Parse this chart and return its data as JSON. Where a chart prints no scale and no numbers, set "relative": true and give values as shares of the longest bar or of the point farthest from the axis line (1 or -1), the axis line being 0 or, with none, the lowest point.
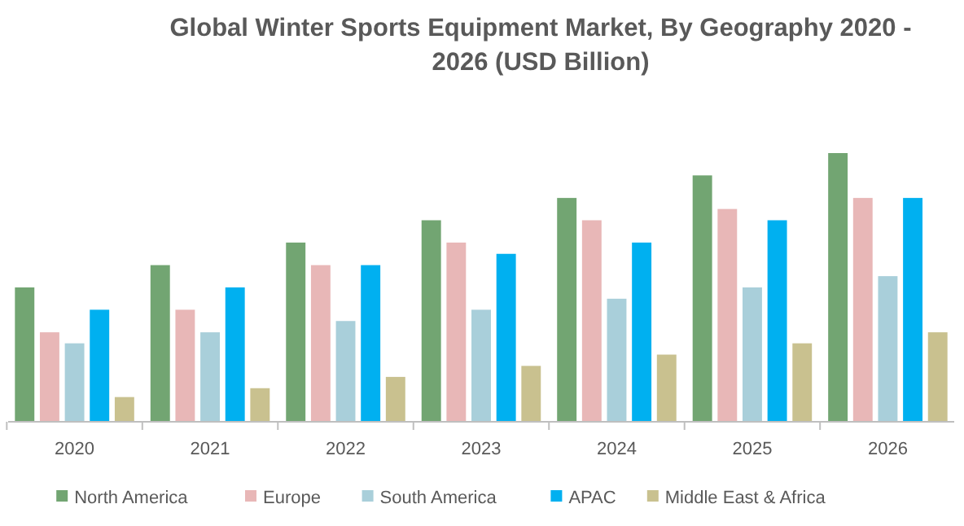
{
  "chart_data": {
    "type": "bar",
    "title": "Global Winter Sports Equipment Market, By Geography 2020 - 2026 (USD Billion)",
    "categories": [
      "2020",
      "2021",
      "2022",
      "2023",
      "2024",
      "2025",
      "2026"
    ],
    "relative": true,
    "legend": "bottom",
    "series": [
      {
        "name": "North America",
        "color": "#72a572",
        "values": [
          0.5,
          0.583,
          0.667,
          0.75,
          0.833,
          0.917,
          1
        ]
      },
      {
        "name": "Europe",
        "color": "#e8b7b7",
        "values": [
          0.333,
          0.417,
          0.583,
          0.667,
          0.75,
          0.792,
          0.833
        ]
      },
      {
        "name": "South America",
        "color": "#a9cfda",
        "values": [
          0.292,
          0.333,
          0.375,
          0.417,
          0.458,
          0.5,
          0.542
        ]
      },
      {
        "name": "APAC",
        "color": "#00b0f0",
        "values": [
          0.417,
          0.5,
          0.583,
          0.625,
          0.667,
          0.75,
          0.833
        ]
      },
      {
        "name": "Middle East & Africa",
        "color": "#c9c18f",
        "values": [
          0.092,
          0.125,
          0.167,
          0.208,
          0.25,
          0.292,
          0.333
        ]
      }
    ]
  }
}
